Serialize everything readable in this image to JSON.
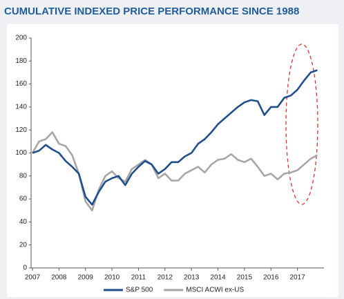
{
  "chart_data": {
    "type": "line",
    "title": "CUMULATIVE INDEXED PRICE PERFORMANCE SINCE 1988",
    "x": [
      2007,
      2007.25,
      2007.5,
      2007.75,
      2008,
      2008.25,
      2008.5,
      2008.75,
      2009,
      2009.25,
      2009.5,
      2009.75,
      2010,
      2010.25,
      2010.5,
      2010.75,
      2011,
      2011.25,
      2011.5,
      2011.75,
      2012,
      2012.25,
      2012.5,
      2012.75,
      2013,
      2013.25,
      2013.5,
      2013.75,
      2014,
      2014.25,
      2014.5,
      2014.75,
      2015,
      2015.25,
      2015.5,
      2015.75,
      2016,
      2016.25,
      2016.5,
      2016.75,
      2017,
      2017.25,
      2017.5,
      2017.75
    ],
    "series": [
      {
        "name": "S&P 500",
        "color": "#1f4e8c",
        "values": [
          100,
          102,
          107,
          103,
          100,
          93,
          88,
          82,
          62,
          55,
          66,
          75,
          78,
          80,
          72,
          82,
          88,
          93,
          90,
          82,
          86,
          92,
          92,
          97,
          100,
          108,
          112,
          118,
          125,
          130,
          135,
          140,
          144,
          146,
          145,
          133,
          140,
          140,
          148,
          150,
          155,
          163,
          170,
          172
        ]
      },
      {
        "name": "MSCI ACWI ex-US",
        "color": "#a6a6a6",
        "values": [
          100,
          110,
          112,
          118,
          108,
          106,
          98,
          82,
          58,
          50,
          68,
          80,
          84,
          78,
          75,
          86,
          90,
          94,
          90,
          78,
          82,
          76,
          76,
          82,
          85,
          88,
          83,
          90,
          94,
          95,
          99,
          94,
          92,
          95,
          88,
          80,
          82,
          77,
          82,
          83,
          85,
          90,
          95,
          98
        ]
      }
    ],
    "xlim": [
      2007,
      2018
    ],
    "xticks": [
      2007,
      2008,
      2009,
      2010,
      2011,
      2012,
      2013,
      2014,
      2015,
      2016,
      2017
    ],
    "ylim": [
      0,
      200
    ],
    "yticks": [
      0,
      20,
      40,
      60,
      80,
      100,
      120,
      140,
      160,
      180,
      200
    ],
    "legend": "bottom"
  }
}
